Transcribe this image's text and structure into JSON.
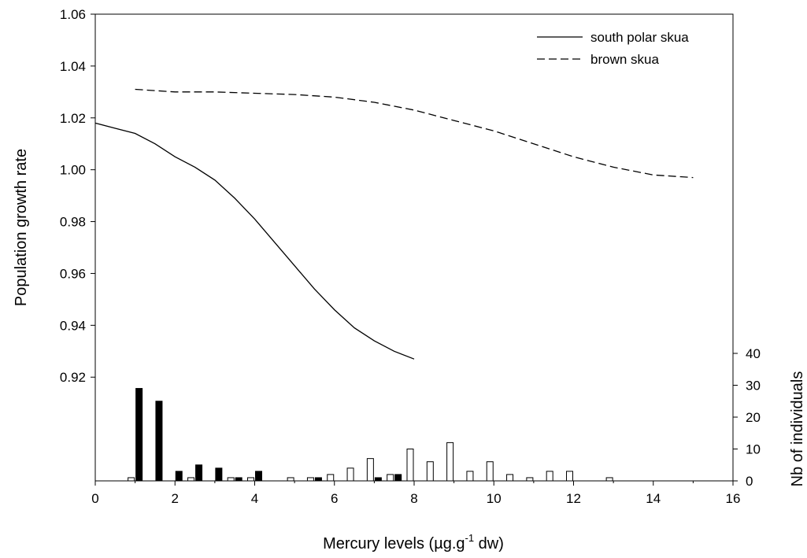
{
  "chart_data": {
    "type": "line",
    "title": "",
    "xlabel": {
      "main": "Mercury levels (µg.g",
      "sup": "-1",
      "suffix": " dw)"
    },
    "ylabel": "Population growth rate",
    "y2label": "Nb of individuals",
    "xlim": [
      0,
      16
    ],
    "ylim": [
      0.88,
      1.06
    ],
    "y2lim": [
      0,
      90
    ],
    "x_ticks": [
      "0",
      "2",
      "4",
      "6",
      "8",
      "10",
      "12",
      "14",
      "16"
    ],
    "y_ticks": [
      "0.92",
      "0.94",
      "0.96",
      "0.98",
      "1.00",
      "1.02",
      "1.04",
      "1.06"
    ],
    "y2_ticks": [
      "0",
      "10",
      "20",
      "30",
      "40"
    ],
    "grid": false,
    "legend_position": "top-right",
    "line_series": [
      {
        "name": "south polar skua",
        "style": "solid",
        "x": [
          0,
          0.5,
          1,
          1.5,
          2,
          2.5,
          3,
          3.5,
          4,
          4.5,
          5,
          5.5,
          6,
          6.5,
          7,
          7.5,
          8
        ],
        "y": [
          1.018,
          1.016,
          1.014,
          1.01,
          1.005,
          1.001,
          0.996,
          0.989,
          0.981,
          0.972,
          0.963,
          0.954,
          0.946,
          0.939,
          0.934,
          0.93,
          0.927
        ]
      },
      {
        "name": "brown skua",
        "style": "dashed",
        "x": [
          1,
          2,
          3,
          4,
          5,
          6,
          7,
          8,
          9,
          10,
          11,
          12,
          13,
          14,
          15
        ],
        "y": [
          1.031,
          1.03,
          1.03,
          1.0295,
          1.029,
          1.028,
          1.026,
          1.023,
          1.019,
          1.015,
          1.01,
          1.005,
          1.001,
          0.998,
          0.997
        ]
      }
    ],
    "bar_series": [
      {
        "name": "south polar skua",
        "fill": "#000000",
        "x": [
          1.0,
          1.5,
          2.0,
          2.5,
          3.0,
          3.5,
          4.0,
          5.5,
          7.0,
          7.5
        ],
        "values": [
          29,
          25,
          3,
          5,
          4,
          1,
          3,
          1,
          1,
          2
        ]
      },
      {
        "name": "brown skua",
        "fill": "#ffffff",
        "x": [
          1.0,
          2.5,
          3.5,
          4.0,
          5.0,
          5.5,
          6.0,
          6.5,
          7.0,
          7.5,
          8.0,
          8.5,
          9.0,
          9.5,
          10.0,
          10.5,
          11.0,
          11.5,
          12.0,
          13.0
        ],
        "values": [
          1,
          1,
          1,
          1,
          1,
          1,
          2,
          4,
          7,
          2,
          10,
          6,
          12,
          3,
          6,
          2,
          1,
          3,
          3,
          1
        ]
      }
    ]
  }
}
